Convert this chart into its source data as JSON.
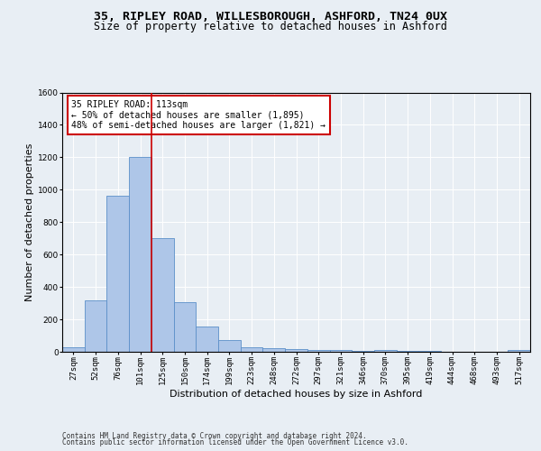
{
  "title_line1": "35, RIPLEY ROAD, WILLESBOROUGH, ASHFORD, TN24 0UX",
  "title_line2": "Size of property relative to detached houses in Ashford",
  "xlabel": "Distribution of detached houses by size in Ashford",
  "ylabel": "Number of detached properties",
  "categories": [
    "27sqm",
    "52sqm",
    "76sqm",
    "101sqm",
    "125sqm",
    "150sqm",
    "174sqm",
    "199sqm",
    "223sqm",
    "248sqm",
    "272sqm",
    "297sqm",
    "321sqm",
    "346sqm",
    "370sqm",
    "395sqm",
    "419sqm",
    "444sqm",
    "468sqm",
    "493sqm",
    "517sqm"
  ],
  "values": [
    28,
    320,
    965,
    1200,
    700,
    305,
    155,
    70,
    28,
    20,
    15,
    12,
    10,
    8,
    12,
    5,
    3,
    2,
    2,
    2,
    12
  ],
  "bar_color": "#aec6e8",
  "bar_edge_color": "#5b8fc9",
  "vline_color": "#cc0000",
  "annotation_text": "35 RIPLEY ROAD: 113sqm\n← 50% of detached houses are smaller (1,895)\n48% of semi-detached houses are larger (1,821) →",
  "annotation_box_color": "#ffffff",
  "annotation_box_edge_color": "#cc0000",
  "ylim": [
    0,
    1600
  ],
  "yticks": [
    0,
    200,
    400,
    600,
    800,
    1000,
    1200,
    1400,
    1600
  ],
  "bg_color": "#e8eef4",
  "axes_bg_color": "#e8eef4",
  "footer_line1": "Contains HM Land Registry data © Crown copyright and database right 2024.",
  "footer_line2": "Contains public sector information licensed under the Open Government Licence v3.0.",
  "title_fontsize": 9.5,
  "subtitle_fontsize": 8.5,
  "tick_fontsize": 6.5,
  "ylabel_fontsize": 8,
  "xlabel_fontsize": 8,
  "annotation_fontsize": 7,
  "footer_fontsize": 5.5
}
